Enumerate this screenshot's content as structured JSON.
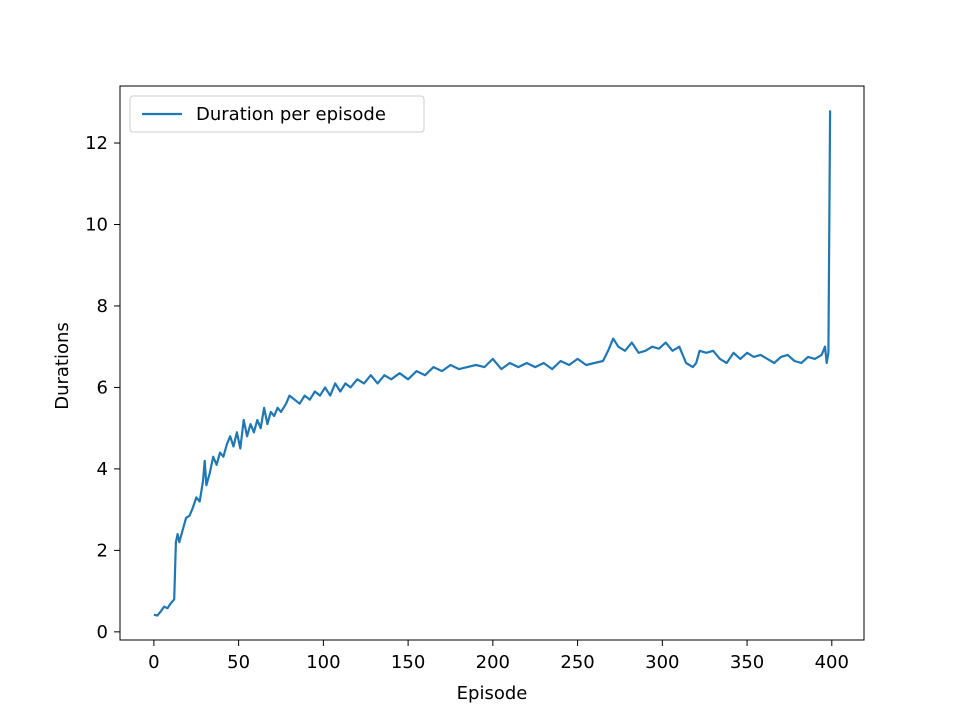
{
  "chart_data": {
    "type": "line",
    "title": "",
    "xlabel": "Episode",
    "ylabel": "Durations",
    "xlim": [
      -20,
      419
    ],
    "ylim": [
      -0.2,
      13.4
    ],
    "xticks": [
      0,
      50,
      100,
      150,
      200,
      250,
      300,
      350,
      400
    ],
    "yticks": [
      0,
      2,
      4,
      6,
      8,
      10,
      12
    ],
    "xtick_labels": [
      "0",
      "50",
      "100",
      "150",
      "200",
      "250",
      "300",
      "350",
      "400"
    ],
    "ytick_labels": [
      "0",
      "2",
      "4",
      "6",
      "8",
      "10",
      "12"
    ],
    "grid": false,
    "legend": {
      "position": "top-left",
      "entries": [
        "Duration per episode"
      ]
    },
    "series": [
      {
        "name": "Duration per episode",
        "color": "#1f77b4",
        "points": [
          [
            0,
            0.42
          ],
          [
            2,
            0.4
          ],
          [
            4,
            0.5
          ],
          [
            6,
            0.62
          ],
          [
            8,
            0.58
          ],
          [
            10,
            0.7
          ],
          [
            12,
            0.8
          ],
          [
            13,
            2.2
          ],
          [
            14,
            2.4
          ],
          [
            15,
            2.2
          ],
          [
            17,
            2.5
          ],
          [
            19,
            2.8
          ],
          [
            21,
            2.85
          ],
          [
            23,
            3.05
          ],
          [
            25,
            3.3
          ],
          [
            27,
            3.2
          ],
          [
            29,
            3.7
          ],
          [
            30,
            4.2
          ],
          [
            31,
            3.6
          ],
          [
            33,
            3.9
          ],
          [
            35,
            4.3
          ],
          [
            37,
            4.1
          ],
          [
            39,
            4.4
          ],
          [
            41,
            4.3
          ],
          [
            43,
            4.6
          ],
          [
            45,
            4.8
          ],
          [
            47,
            4.55
          ],
          [
            49,
            4.9
          ],
          [
            51,
            4.5
          ],
          [
            53,
            5.2
          ],
          [
            55,
            4.8
          ],
          [
            57,
            5.1
          ],
          [
            59,
            4.9
          ],
          [
            61,
            5.2
          ],
          [
            63,
            5.0
          ],
          [
            65,
            5.5
          ],
          [
            67,
            5.1
          ],
          [
            69,
            5.4
          ],
          [
            71,
            5.3
          ],
          [
            73,
            5.5
          ],
          [
            75,
            5.4
          ],
          [
            78,
            5.6
          ],
          [
            80,
            5.8
          ],
          [
            83,
            5.7
          ],
          [
            86,
            5.6
          ],
          [
            89,
            5.8
          ],
          [
            92,
            5.7
          ],
          [
            95,
            5.9
          ],
          [
            98,
            5.8
          ],
          [
            101,
            6.0
          ],
          [
            104,
            5.8
          ],
          [
            107,
            6.1
          ],
          [
            110,
            5.9
          ],
          [
            113,
            6.1
          ],
          [
            116,
            6.0
          ],
          [
            120,
            6.2
          ],
          [
            124,
            6.1
          ],
          [
            128,
            6.3
          ],
          [
            132,
            6.1
          ],
          [
            136,
            6.3
          ],
          [
            140,
            6.2
          ],
          [
            145,
            6.35
          ],
          [
            150,
            6.2
          ],
          [
            155,
            6.4
          ],
          [
            160,
            6.3
          ],
          [
            165,
            6.5
          ],
          [
            170,
            6.4
          ],
          [
            175,
            6.55
          ],
          [
            180,
            6.45
          ],
          [
            185,
            6.5
          ],
          [
            190,
            6.55
          ],
          [
            195,
            6.5
          ],
          [
            200,
            6.7
          ],
          [
            205,
            6.45
          ],
          [
            210,
            6.6
          ],
          [
            215,
            6.5
          ],
          [
            220,
            6.6
          ],
          [
            225,
            6.5
          ],
          [
            230,
            6.6
          ],
          [
            235,
            6.45
          ],
          [
            240,
            6.65
          ],
          [
            245,
            6.55
          ],
          [
            250,
            6.7
          ],
          [
            255,
            6.55
          ],
          [
            260,
            6.6
          ],
          [
            265,
            6.65
          ],
          [
            268,
            6.9
          ],
          [
            271,
            7.2
          ],
          [
            274,
            7.0
          ],
          [
            278,
            6.9
          ],
          [
            282,
            7.1
          ],
          [
            286,
            6.85
          ],
          [
            290,
            6.9
          ],
          [
            294,
            7.0
          ],
          [
            298,
            6.95
          ],
          [
            302,
            7.1
          ],
          [
            306,
            6.9
          ],
          [
            310,
            7.0
          ],
          [
            314,
            6.6
          ],
          [
            318,
            6.5
          ],
          [
            320,
            6.6
          ],
          [
            322,
            6.9
          ],
          [
            326,
            6.85
          ],
          [
            330,
            6.9
          ],
          [
            334,
            6.7
          ],
          [
            338,
            6.6
          ],
          [
            342,
            6.85
          ],
          [
            346,
            6.7
          ],
          [
            350,
            6.85
          ],
          [
            354,
            6.75
          ],
          [
            358,
            6.8
          ],
          [
            362,
            6.7
          ],
          [
            366,
            6.6
          ],
          [
            370,
            6.75
          ],
          [
            374,
            6.8
          ],
          [
            378,
            6.65
          ],
          [
            382,
            6.6
          ],
          [
            386,
            6.75
          ],
          [
            390,
            6.7
          ],
          [
            394,
            6.8
          ],
          [
            396,
            7.0
          ],
          [
            397,
            6.6
          ],
          [
            398,
            6.85
          ],
          [
            399,
            12.8
          ]
        ]
      }
    ]
  }
}
